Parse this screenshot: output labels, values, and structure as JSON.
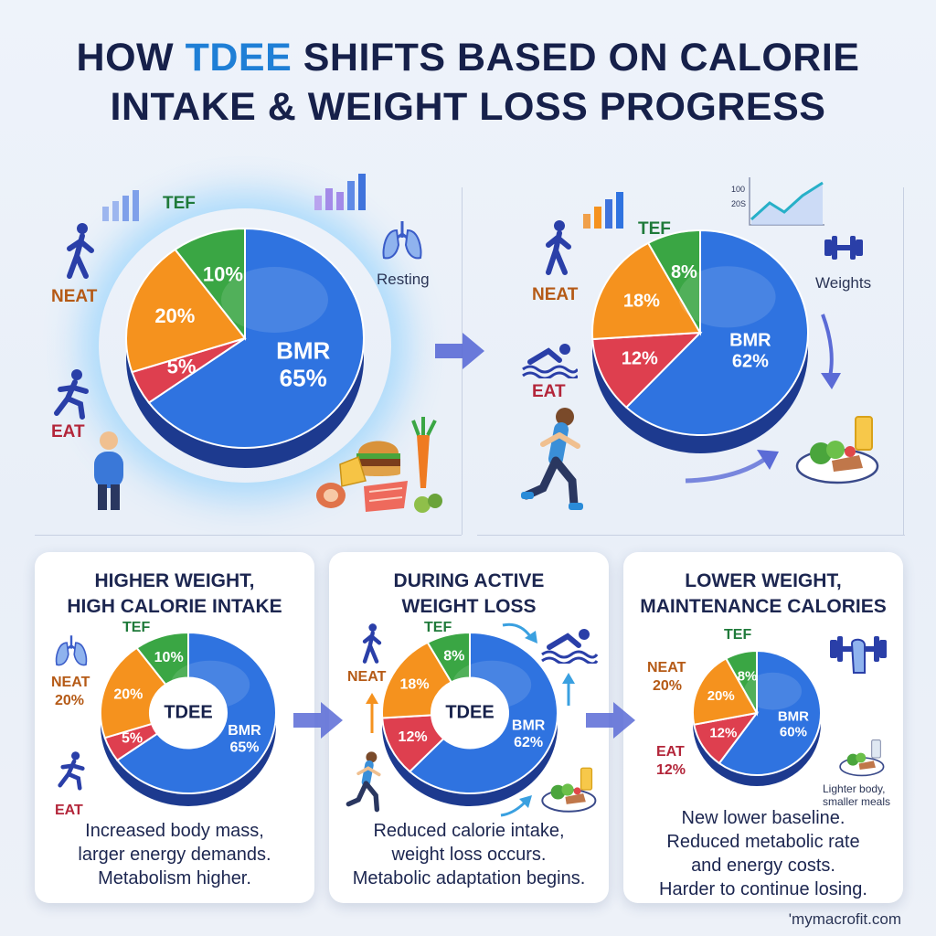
{
  "title": {
    "prefix": "HOW ",
    "accent": "TDEE",
    "rest_line1": " SHIFTS BASED ON CALORIE",
    "line2": "INTAKE & WEIGHT LOSS PROGRESS"
  },
  "colors": {
    "bmr": "#2f73e0",
    "bmr_light": "#34b3ee",
    "neat": "#f5921e",
    "tef": "#3aa644",
    "eat": "#de3f4f",
    "neat_text": "#b55a16",
    "eat_text": "#b3263a",
    "tef_text": "#1f7a3a",
    "accent": "#1f7fd6",
    "arrow": "#5b6bd6"
  },
  "top_left": {
    "labels": {
      "neat": "NEAT",
      "eat": "EAT",
      "tef": "TEF",
      "resting": "Resting"
    },
    "icons": [
      "walking-person-icon",
      "running-person-icon",
      "standing-person-icon",
      "lungs-icon",
      "bar-chart-icon",
      "burger-icon",
      "carrot-icon",
      "food-plate-icon"
    ]
  },
  "top_right": {
    "labels": {
      "neat": "NEAT",
      "eat": "EAT",
      "tef": "TEF",
      "weights": "Weights",
      "axis_100": "100",
      "axis_20s": "20S"
    },
    "icons": [
      "walking-person-icon",
      "swimmer-icon",
      "runner-woman-icon",
      "dumbbell-icon",
      "salad-plate-icon",
      "line-chart-icon",
      "bar-chart-icon"
    ]
  },
  "cards": [
    {
      "title_line1": "HIGHER WEIGHT,",
      "title_line2": "HIGH CALORIE INTAKE",
      "center": "TDEE",
      "labels": {
        "tef": "TEF",
        "neat": "NEAT",
        "neat_pct": "20%",
        "eat": "EAT"
      },
      "desc": [
        "Increased body mass,",
        "larger energy demands.",
        "Metabolism higher."
      ]
    },
    {
      "title_line1": "DURING ACTIVE",
      "title_line2": "WEIGHT LOSS",
      "center": "TDEE",
      "labels": {
        "tef": "TEF",
        "neat": "NEAT"
      },
      "desc": [
        "Reduced calorie intake,",
        "weight loss occurs.",
        "Metabolic adaptation begins."
      ]
    },
    {
      "title_line1": "LOWER WEIGHT,",
      "title_line2": "MAINTENANCE CALORIES",
      "labels": {
        "tef": "TEF",
        "neat": "NEAT",
        "neat_pct": "20%",
        "eat": "EAT",
        "eat_pct": "12%",
        "note1": "Lighter body,",
        "note2": "smaller meals"
      },
      "desc": [
        "New lower baseline.",
        "Reduced metabolic rate",
        "and energy costs.",
        "Harder to continue losing."
      ]
    }
  ],
  "footer": "'mymacrofit.com",
  "chart_data": [
    {
      "type": "pie",
      "title": "",
      "categories": [
        "BMR",
        "EAT",
        "NEAT",
        "TEF"
      ],
      "values": [
        65,
        5,
        20,
        10
      ],
      "labels": [
        "BMR\n65%",
        "5%",
        "20%",
        "10%"
      ]
    },
    {
      "type": "pie",
      "categories": [
        "BMR",
        "EAT",
        "NEAT",
        "TEF"
      ],
      "values": [
        62,
        12,
        18,
        8
      ],
      "labels": [
        "BMR\n62%",
        "12%",
        "18%",
        "8%"
      ]
    },
    {
      "type": "pie",
      "title": "HIGHER WEIGHT, HIGH CALORIE INTAKE",
      "center_label": "TDEE",
      "categories": [
        "BMR",
        "EAT",
        "NEAT",
        "TEF"
      ],
      "values": [
        65,
        5,
        20,
        10
      ],
      "labels": [
        "BMR\n65%",
        "5%",
        "20%",
        "10%"
      ]
    },
    {
      "type": "pie",
      "title": "DURING ACTIVE WEIGHT LOSS",
      "center_label": "TDEE",
      "categories": [
        "BMR",
        "EAT",
        "NEAT",
        "TEF"
      ],
      "values": [
        62,
        12,
        18,
        8
      ],
      "labels": [
        "BMR\n62%",
        "12%",
        "18%",
        "8%"
      ]
    },
    {
      "type": "pie",
      "title": "LOWER WEIGHT, MAINTENANCE CALORIES",
      "categories": [
        "BMR",
        "EAT",
        "NEAT",
        "TEF"
      ],
      "values": [
        60,
        12,
        20,
        8
      ],
      "labels": [
        "BMR\n60%",
        "12%",
        "20%",
        "8%"
      ]
    }
  ]
}
